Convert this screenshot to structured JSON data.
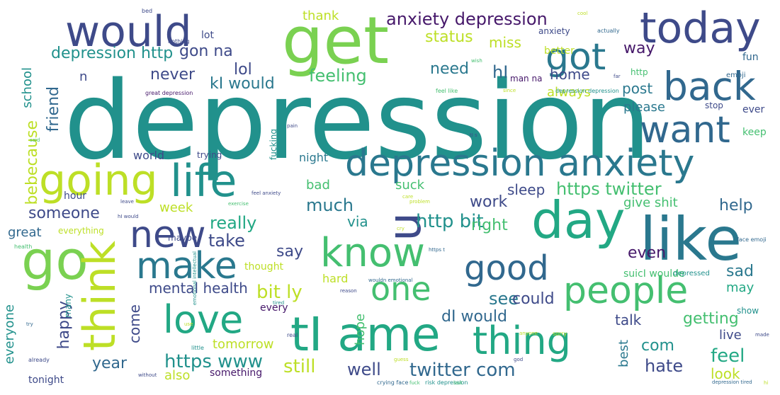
{
  "words": {
    "depression": "depression",
    "get": "get",
    "would": "would",
    "today": "today",
    "got": "got",
    "back": "back",
    "want": "want",
    "depression_anxiety": "depression anxiety",
    "going": "going",
    "life": "life",
    "new": "new",
    "day": "day",
    "like": "like",
    "u": "u",
    "go": "go",
    "think": "think",
    "make": "make",
    "know": "know",
    "good": "good",
    "people": "people",
    "one": "one",
    "love": "love",
    "tI_ame": "tI ame",
    "thing": "thing",
    "anxiety_depression": "anxiety depression",
    "gon_na": "gon na",
    "lol": "lol",
    "status": "status",
    "depression_http": "depression http",
    "never": "never",
    "feeling": "feeling",
    "need": "need",
    "hI": "hI",
    "kI_would": "kI would",
    "friend": "friend",
    "bebecause": "bebecause",
    "school": "school",
    "miss": "miss",
    "thank": "thank",
    "way": "way",
    "home": "home",
    "always": "always",
    "post": "post",
    "please": "please",
    "https_twitter": "https twitter",
    "sleep": "sleep",
    "help": "help",
    "give_shit": "give shit",
    "really": "really",
    "much": "much",
    "work": "work",
    "http_bit": "http bit",
    "via": "via",
    "right": "right",
    "someone": "someone",
    "week": "week",
    "great": "great",
    "take": "take",
    "say": "say",
    "mental_health": "mental health",
    "bit_ly": "bit ly",
    "see": "see",
    "could": "could",
    "dI_would": "dI would",
    "even": "even",
    "sad": "sad",
    "may": "may",
    "talk": "talk",
    "getting": "getting",
    "hope": "hope",
    "happy": "happy",
    "come": "come",
    "year": "year",
    "https_www": "https www",
    "tomorrow": "tomorrow",
    "still": "still",
    "well": "well",
    "twitter_com": "twitter com",
    "com": "com",
    "feel": "feel",
    "hate": "hate",
    "look": "look",
    "best": "best",
    "live": "live",
    "everyone": "everyone",
    "also": "also",
    "something": "something",
    "tonight": "tonight",
    "world": "world",
    "night": "night",
    "trying": "trying",
    "fucking": "fucking",
    "bad": "bad",
    "suck": "suck",
    "hour": "hour",
    "n": "n",
    "lot": "lot",
    "better": "better",
    "fun": "fun",
    "keep": "keep",
    "ever": "ever",
    "stop": "stop",
    "suicI_woulde": "suicI woulde",
    "hard": "hard",
    "every": "every",
    "thought": "thought",
    "many": "many",
    "everything": "everything",
    "maybe": "maybe",
    "show": "show",
    "depressed": "depressed",
    "emoji": "emoji",
    "http": "http",
    "anxiety": "anxiety",
    "man_na": "man na",
    "feel_like": "feel like",
    "great_depression": "great depression",
    "depression_depression": "depression depression",
    "crying_face": "crying face",
    "risk_depression": "risk depression",
    "depression_tired": "depression tired",
    "face_emoji": "face emoji",
    "actually": "actually",
    "already": "already",
    "little": "little",
    "health": "health",
    "real": "real",
    "sorry": "sorry",
    "anyone": "anyone",
    "made": "made",
    "nothing": "nothing",
    "without": "without",
    "care": "care",
    "problem": "problem",
    "exercise": "exercise",
    "reason": "reason",
    "guess": "guess",
    "since": "since",
    "last": "last",
    "god": "god",
    "pain": "pain",
    "tired": "tired",
    "wouldn_emotional": "wouldn emotional",
    "https_t": "https t",
    "emotional_intellectual": "emotional intellectual",
    "hI_would": "hI would",
    "said": "said",
    "feel_anxiety": "feel anxiety",
    "try": "try",
    "use": "use",
    "cry": "cry",
    "tI_s": "tI s",
    "leave": "leave",
    "fuck": "fuck",
    "bed": "bed",
    "wish": "wish",
    "far": "far",
    "cool": "cool",
    "hi": "hi"
  },
  "colors": {
    "dark_purple": "#46186a",
    "purple": "#482878",
    "indigo": "#3e4a89",
    "blue": "#31688e",
    "steel": "#2a788e",
    "teal": "#21918c",
    "green_teal": "#22a884",
    "green": "#44bf70",
    "lime": "#7ad151",
    "yellow_green": "#bddf26",
    "yellow": "#e0e428"
  }
}
